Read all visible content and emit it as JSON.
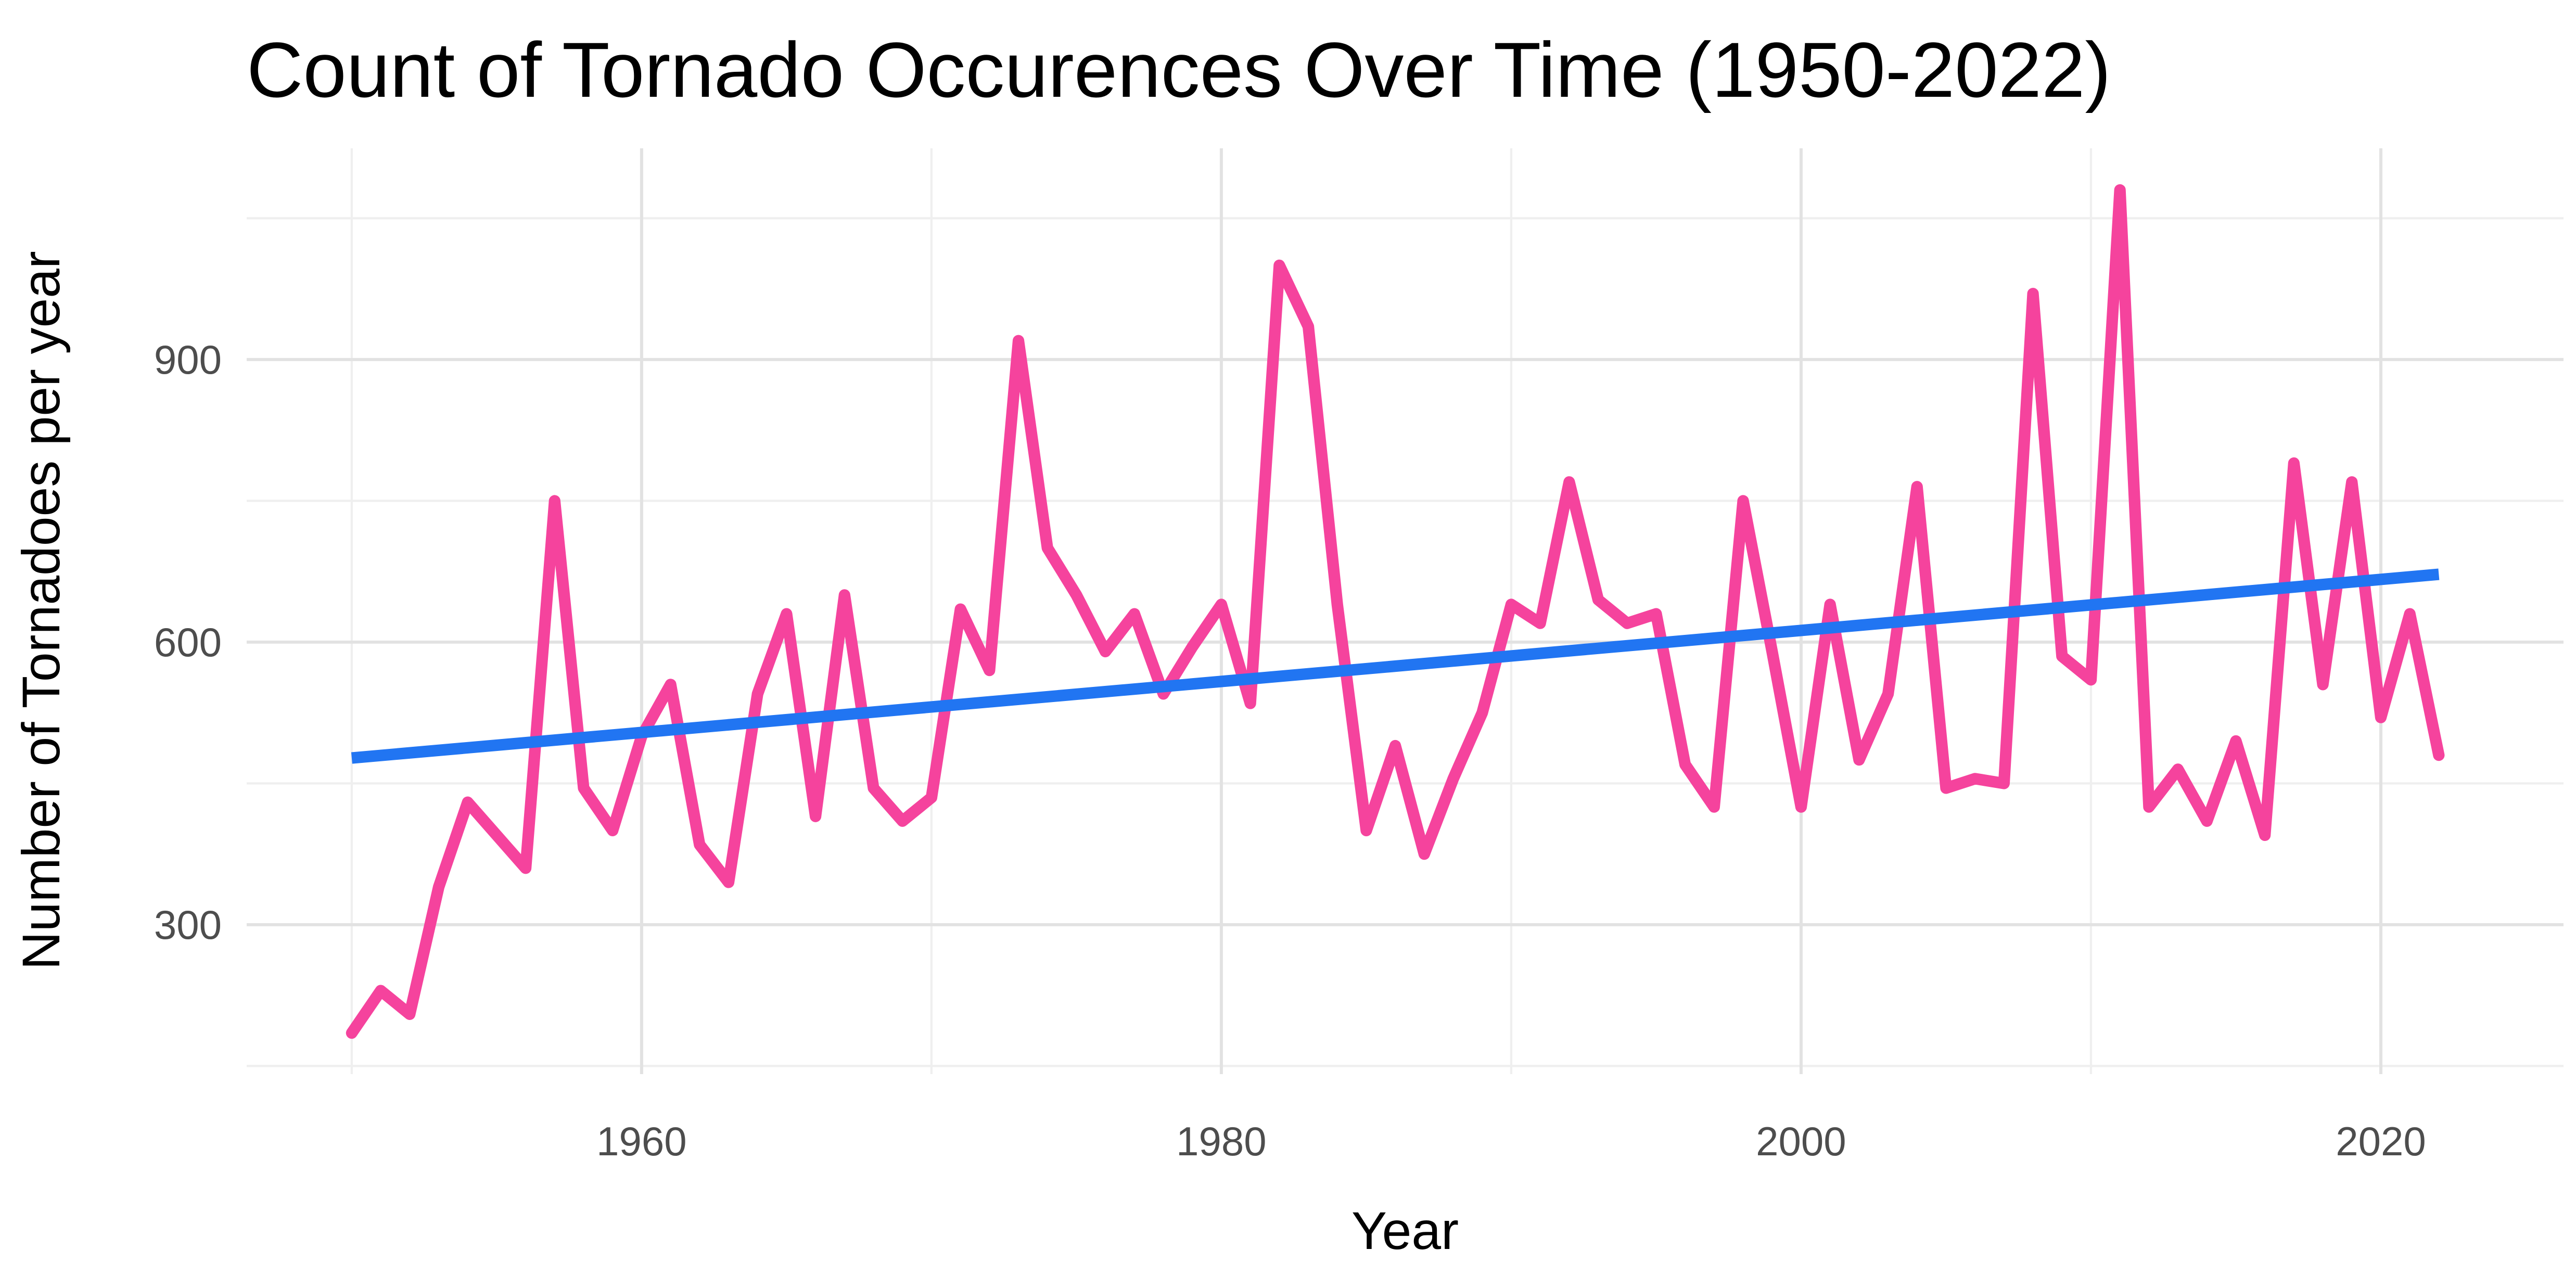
{
  "title": "Count of Tornado Occurences Over Time (1950-2022)",
  "colors": {
    "line": "#F5439D",
    "trend": "#2175F2",
    "grid_major": "#E2E2E2",
    "grid_minor": "#EFEFEF",
    "tick_text": "#4D4D4D",
    "title_text": "#000000",
    "background": "#FFFFFF"
  },
  "chart_data": {
    "type": "line",
    "title": "Count of Tornado Occurences Over Time (1950-2022)",
    "xlabel": "Year",
    "ylabel": "Number of Tornadoes per year",
    "x_ticks": [
      1960,
      1980,
      2000,
      2020
    ],
    "y_ticks": [
      300,
      600,
      900
    ],
    "x_minor": [
      1950,
      1970,
      1990,
      2010
    ],
    "y_minor": [
      150,
      450,
      750,
      1050
    ],
    "xlim": [
      1946.5,
      2026.2
    ],
    "ylim": [
      141,
      1124
    ],
    "grid": true,
    "legend_position": "none",
    "series": [
      {
        "name": "tornado-count",
        "color": "#F5439D",
        "x": [
          1950,
          1951,
          1952,
          1953,
          1954,
          1955,
          1956,
          1957,
          1958,
          1959,
          1960,
          1961,
          1962,
          1963,
          1964,
          1965,
          1966,
          1967,
          1968,
          1969,
          1970,
          1971,
          1972,
          1973,
          1974,
          1975,
          1976,
          1977,
          1978,
          1979,
          1980,
          1981,
          1982,
          1983,
          1984,
          1985,
          1986,
          1987,
          1988,
          1989,
          1990,
          1991,
          1992,
          1993,
          1994,
          1995,
          1996,
          1997,
          1998,
          1999,
          2000,
          2001,
          2002,
          2003,
          2004,
          2005,
          2006,
          2007,
          2008,
          2009,
          2010,
          2011,
          2012,
          2013,
          2014,
          2015,
          2016,
          2017,
          2018,
          2019,
          2020,
          2021,
          2022
        ],
        "values": [
          185,
          230,
          205,
          340,
          430,
          395,
          360,
          750,
          445,
          400,
          500,
          555,
          385,
          345,
          545,
          630,
          415,
          650,
          445,
          410,
          435,
          635,
          570,
          920,
          700,
          650,
          590,
          630,
          545,
          595,
          640,
          535,
          1000,
          935,
          640,
          400,
          490,
          375,
          455,
          525,
          640,
          620,
          770,
          645,
          620,
          630,
          470,
          425,
          750,
          590,
          425,
          640,
          475,
          545,
          765,
          445,
          455,
          450,
          970,
          585,
          560,
          1080,
          425,
          465,
          410,
          495,
          395,
          790,
          555,
          770,
          520,
          630,
          480
        ]
      },
      {
        "name": "linear-trend",
        "color": "#2175F2",
        "x": [
          1950,
          2022
        ],
        "values": [
          477,
          672
        ]
      }
    ]
  }
}
